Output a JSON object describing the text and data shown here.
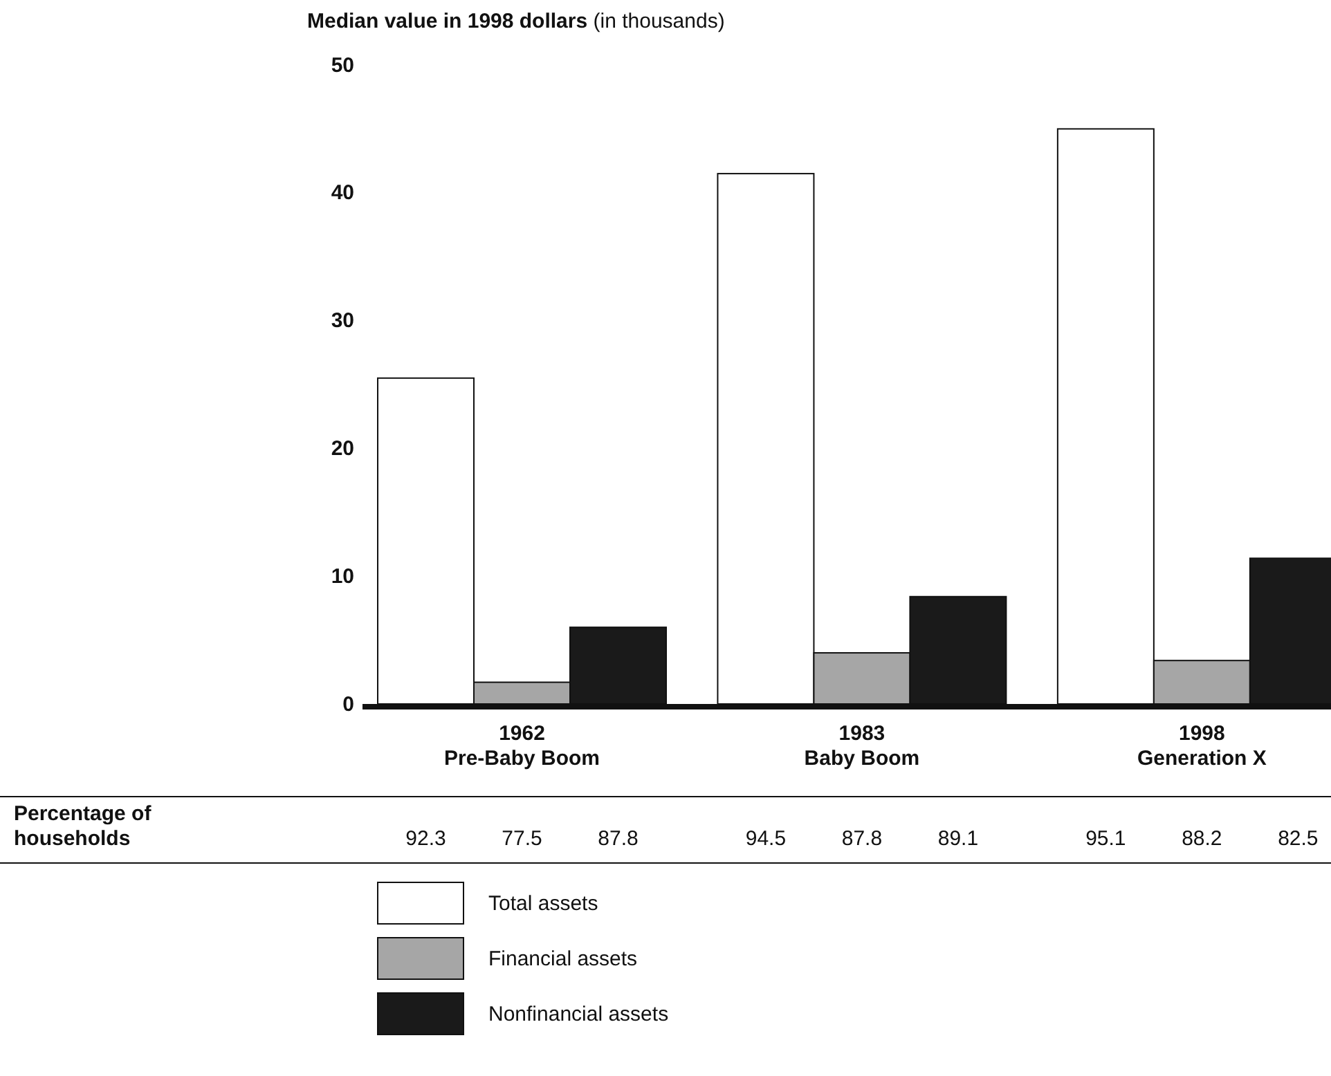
{
  "chart_data": {
    "type": "bar",
    "ylabel": "Median value in 1998 dollars (in thousands)",
    "categories": [
      "1962\nPre-Baby Boom",
      "1983\nBaby Boom",
      "1998\nGeneration X"
    ],
    "series": [
      {
        "name": "Total assets",
        "color": "#ffffff",
        "values": [
          25.5,
          41.5,
          45.0
        ]
      },
      {
        "name": "Financial assets",
        "color": "#a6a6a6",
        "values": [
          1.7,
          4.0,
          3.4
        ]
      },
      {
        "name": "Nonfinancial assets",
        "color": "#1a1a1a",
        "values": [
          6.0,
          8.4,
          11.4
        ]
      }
    ],
    "ylim": [
      0,
      50
    ],
    "yticks": [
      0,
      10,
      20,
      30,
      40,
      50
    ],
    "grid": false,
    "legend": "bottom",
    "annotations": [
      "Percentage of\nhouseholds",
      "92.3",
      "77.5",
      "87.8",
      "94.5",
      "87.8",
      "89.1",
      "95.1",
      "88.2",
      "82.5"
    ]
  }
}
